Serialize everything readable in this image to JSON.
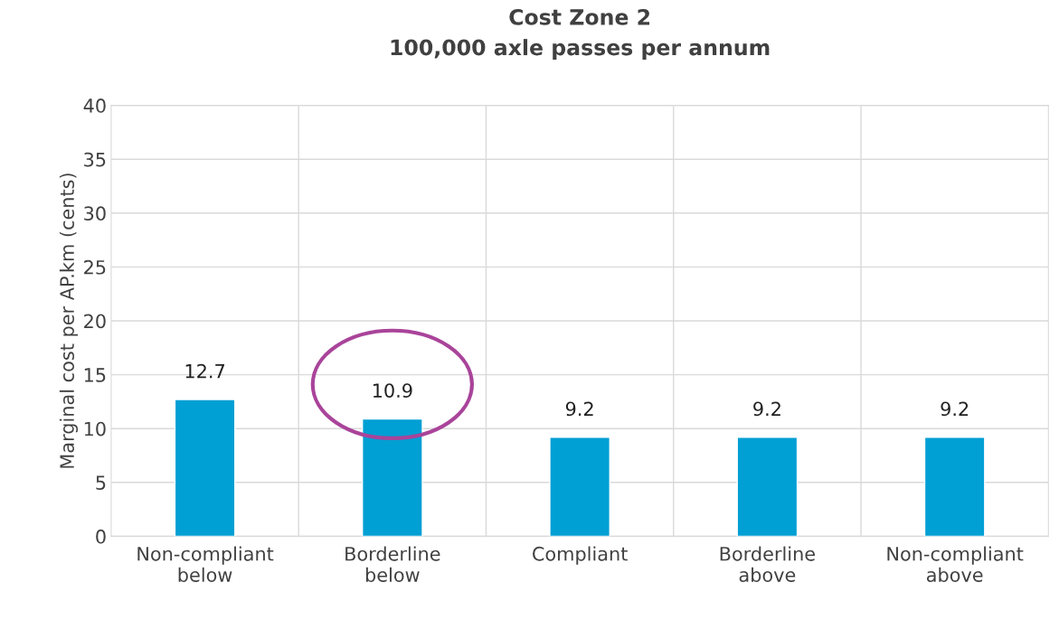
{
  "chart_data": {
    "type": "bar",
    "title": "Cost Zone 2\n100,000 axle passes per annum",
    "ylabel": "Marginal cost per AP.km (cents)",
    "categories": [
      "Non-compliant\nbelow",
      "Borderline\nbelow",
      "Compliant",
      "Borderline\nabove",
      "Non-compliant\nabove"
    ],
    "values": [
      12.7,
      10.9,
      9.2,
      9.2,
      9.2
    ],
    "color": "#009fd4",
    "ylim": [
      0,
      40
    ],
    "yticks": [
      0,
      5,
      10,
      15,
      20,
      25,
      30,
      35,
      40
    ],
    "grid": true,
    "data_labels": true
  }
}
